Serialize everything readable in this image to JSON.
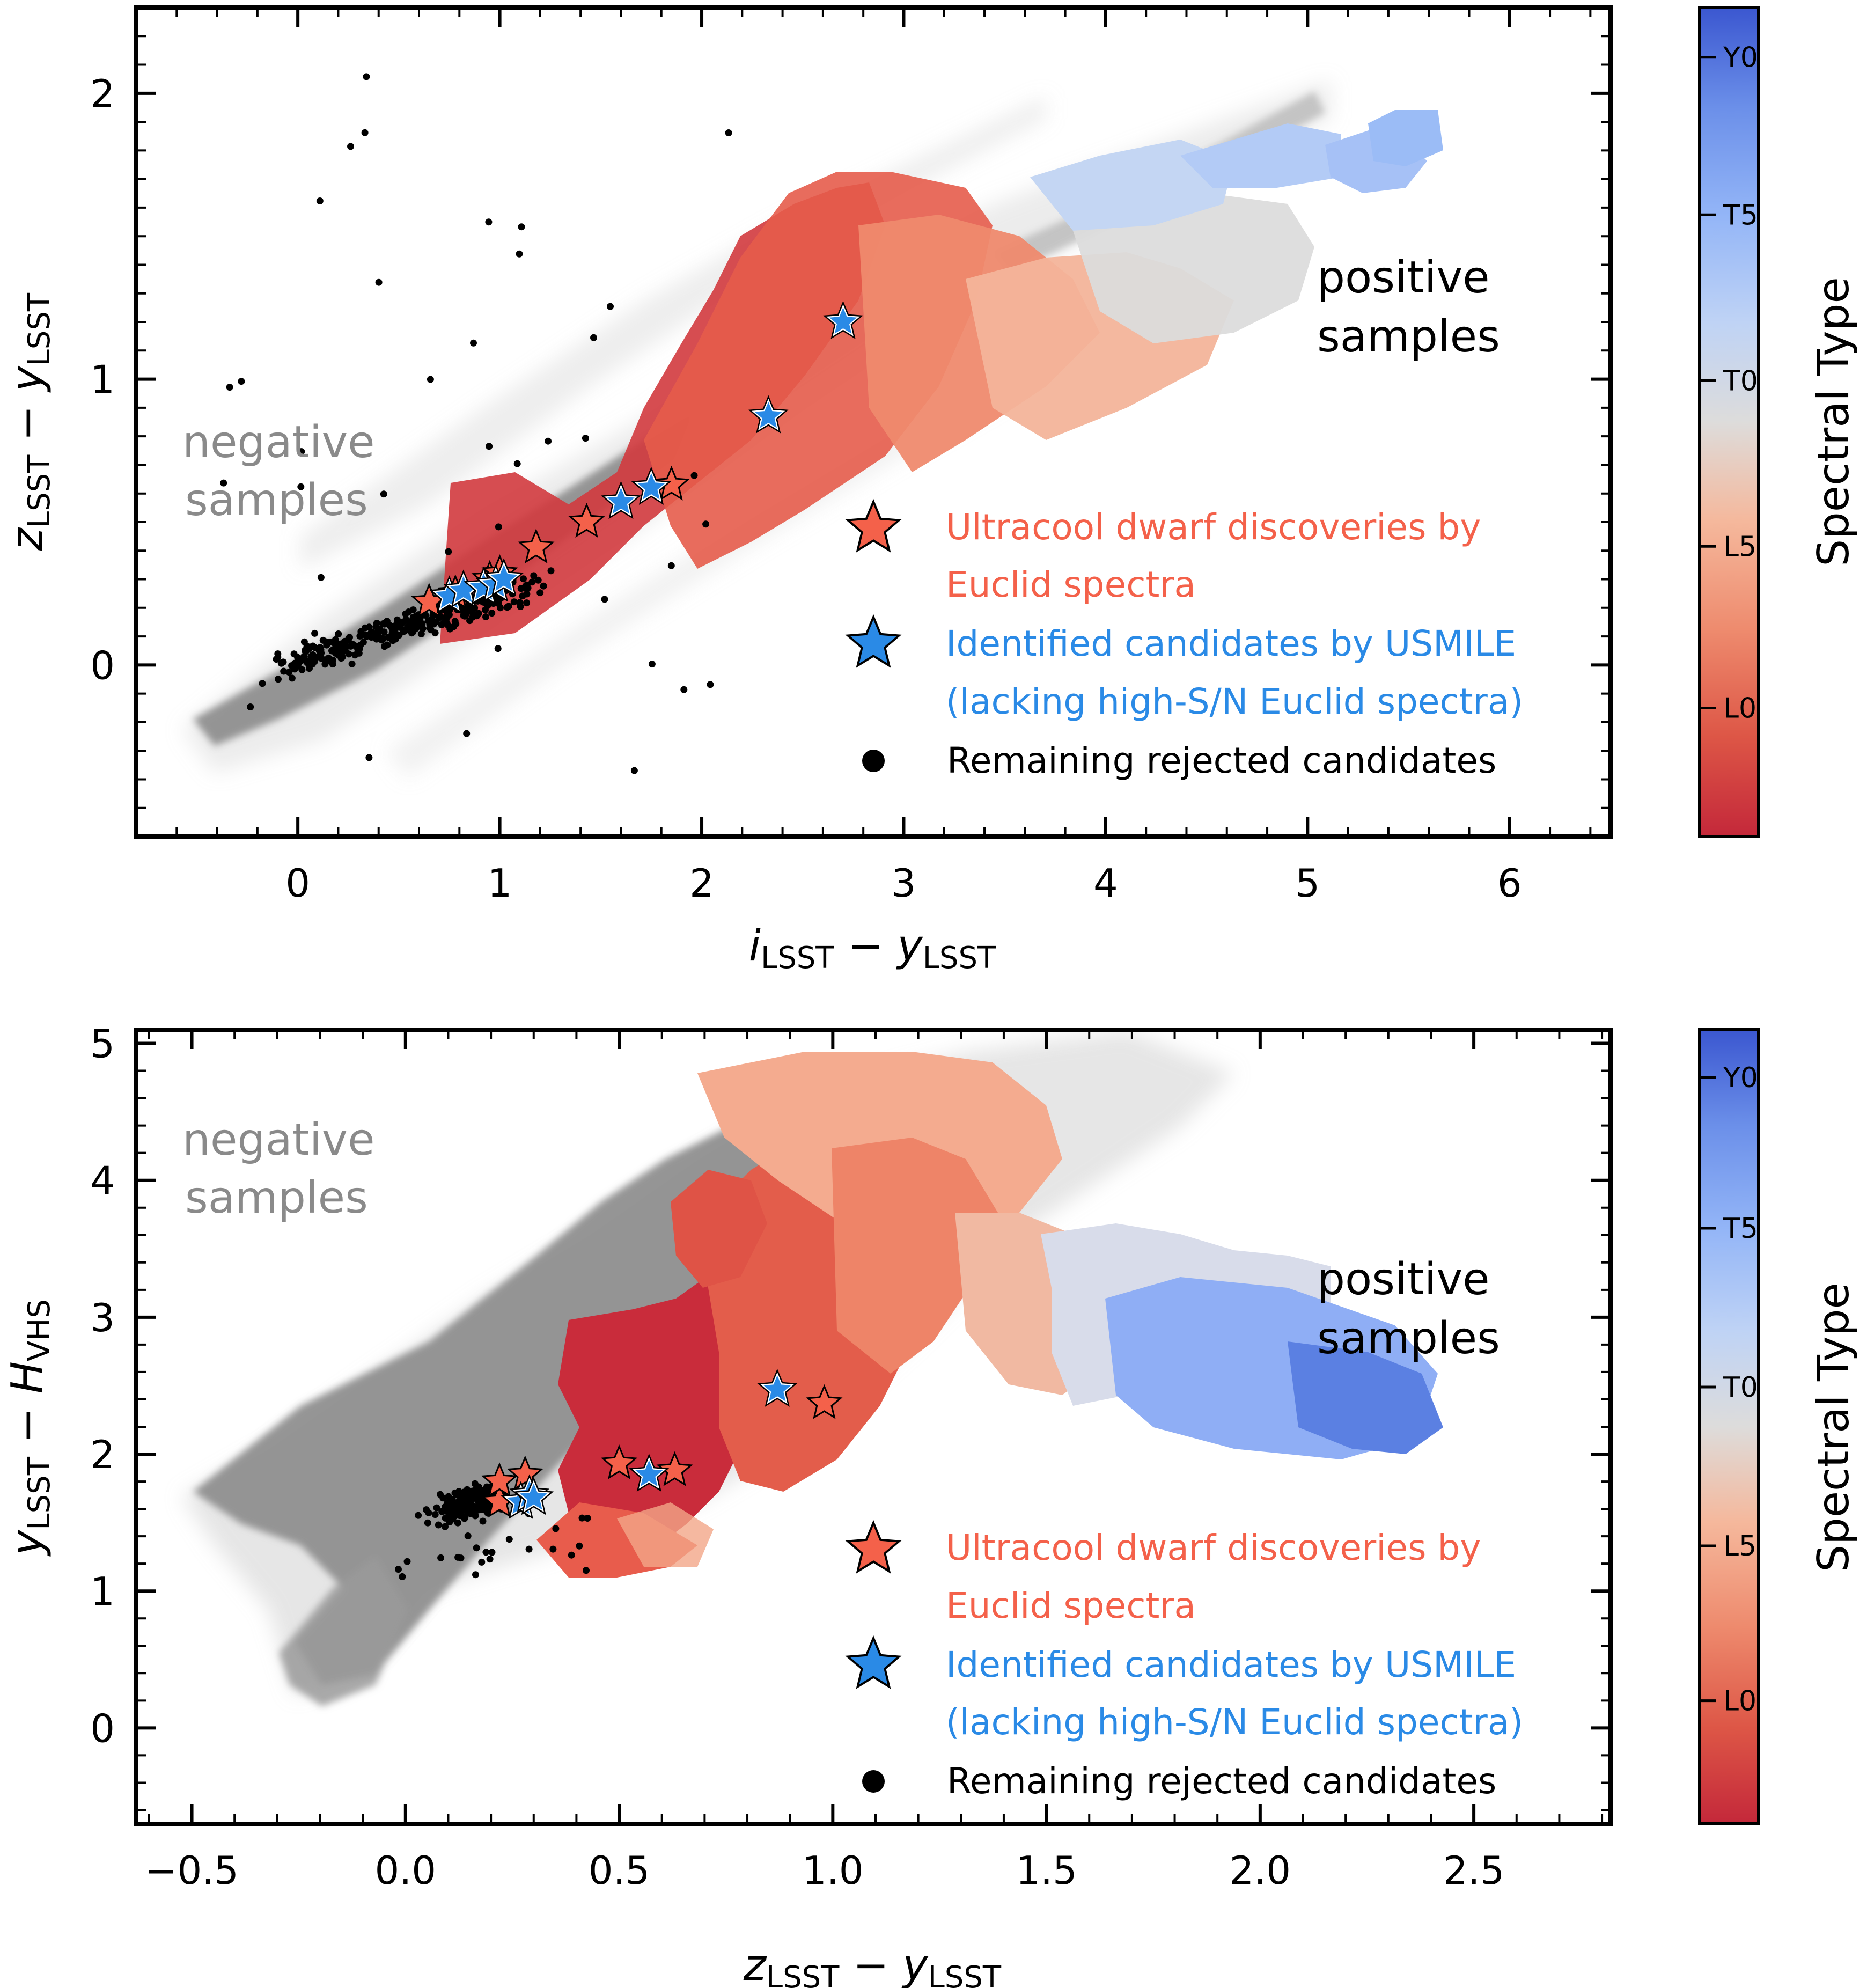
{
  "chart_data": [
    {
      "type": "scatter",
      "panel": "top",
      "xlabel": "i_LSST − y_LSST",
      "ylabel": "z_LSST − y_LSST",
      "xlabel_main_x": "i",
      "xlabel_main_y": "y",
      "ylabel_main_x": "z",
      "ylabel_main_y": "y",
      "sub_x": "LSST",
      "sub_y": "LSST",
      "xlim": [
        -0.8,
        6.5
      ],
      "ylim": [
        -0.6,
        2.3
      ],
      "xticks": [
        0,
        1,
        2,
        3,
        4,
        5,
        6
      ],
      "xtick_labels": [
        "0",
        "1",
        "2",
        "3",
        "4",
        "5",
        "6"
      ],
      "yticks": [
        0,
        1,
        2
      ],
      "ytick_labels": [
        "0",
        "1",
        "2"
      ],
      "annotations": {
        "negative": [
          "negative",
          "samples"
        ],
        "positive": [
          "positive",
          "samples"
        ]
      },
      "legend": [
        {
          "marker": "star",
          "color": "#f4614a",
          "text": [
            "Ultracool dwarf discoveries by",
            "Euclid spectra"
          ]
        },
        {
          "marker": "star",
          "color": "#2a8ae6",
          "text": [
            "Identified candidates by USMILE",
            "(lacking high-S/N Euclid spectra)"
          ]
        },
        {
          "marker": "dot",
          "color": "#000000",
          "text": [
            "Remaining rejected candidates"
          ]
        }
      ],
      "discoveries": [
        [
          0.65,
          0.22
        ],
        [
          0.78,
          0.25
        ],
        [
          0.95,
          0.3
        ],
        [
          1.0,
          0.32
        ],
        [
          1.18,
          0.41
        ],
        [
          1.43,
          0.5
        ],
        [
          1.85,
          0.63
        ]
      ],
      "candidates": [
        [
          0.75,
          0.24
        ],
        [
          0.82,
          0.26
        ],
        [
          0.92,
          0.27
        ],
        [
          0.98,
          0.28
        ],
        [
          1.02,
          0.3
        ],
        [
          1.6,
          0.57
        ],
        [
          1.75,
          0.62
        ],
        [
          2.33,
          0.87
        ],
        [
          2.7,
          1.2
        ]
      ]
    },
    {
      "type": "scatter",
      "panel": "bottom",
      "xlabel": "z_LSST − y_LSST",
      "ylabel": "y_LSST − H_VHS",
      "xlabel_main_x": "z",
      "xlabel_main_y": "y",
      "ylabel_main_x": "y",
      "ylabel_main_y": "H",
      "sub_x": "LSST",
      "sub_y": "LSST",
      "sub_h": "VHS",
      "xlim": [
        -0.63,
        2.82
      ],
      "ylim": [
        -0.7,
        5.1
      ],
      "xticks": [
        -0.5,
        0.0,
        0.5,
        1.0,
        1.5,
        2.0,
        2.5
      ],
      "xtick_labels": [
        "−0.5",
        "0.0",
        "0.5",
        "1.0",
        "1.5",
        "2.0",
        "2.5"
      ],
      "yticks": [
        0,
        1,
        2,
        3,
        4,
        5
      ],
      "ytick_labels": [
        "0",
        "1",
        "2",
        "3",
        "4",
        "5"
      ],
      "annotations": {
        "negative": [
          "negative",
          "samples"
        ],
        "positive": [
          "positive",
          "samples"
        ]
      },
      "legend": [
        {
          "marker": "star",
          "color": "#f4614a",
          "text": [
            "Ultracool dwarf discoveries by",
            "Euclid spectra"
          ]
        },
        {
          "marker": "star",
          "color": "#2a8ae6",
          "text": [
            "Identified candidates by USMILE",
            "(lacking high-S/N Euclid spectra)"
          ]
        },
        {
          "marker": "dot",
          "color": "#000000",
          "text": [
            "Remaining rejected candidates"
          ]
        }
      ],
      "discoveries": [
        [
          0.22,
          1.65
        ],
        [
          0.22,
          1.8
        ],
        [
          0.28,
          1.85
        ],
        [
          0.5,
          1.93
        ],
        [
          0.63,
          1.88
        ],
        [
          0.98,
          2.37
        ]
      ],
      "candidates": [
        [
          0.27,
          1.65
        ],
        [
          0.29,
          1.7
        ],
        [
          0.3,
          1.68
        ],
        [
          0.57,
          1.85
        ],
        [
          0.87,
          2.47
        ]
      ]
    }
  ],
  "colorbar": {
    "label": "Spectral Type",
    "ticks": [
      "Y0",
      "T5",
      "T0",
      "L5",
      "L0"
    ],
    "colors": [
      "#c5283b",
      "#e0654f",
      "#f19c7d",
      "#f4c4ad",
      "#dcdcdc",
      "#c3d4f1",
      "#9bbcf7",
      "#6f96ec",
      "#3e5fd4"
    ]
  },
  "colors": {
    "negative": "#8f8f8f",
    "discovery": "#f4614a",
    "candidate": "#2a8ae6",
    "rejected": "#000000"
  }
}
